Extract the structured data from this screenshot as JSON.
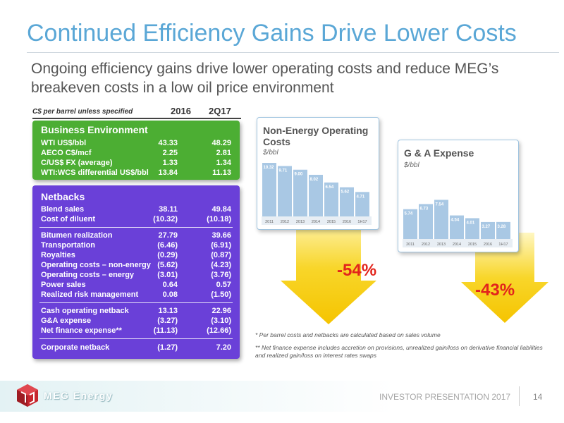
{
  "title": "Continued Efficiency Gains Drive Lower Costs",
  "subtitle": "Ongoing efficiency gains drive lower operating costs and reduce MEG’s breakeven costs in a low oil price environment",
  "table": {
    "units": "C$ per barrel unless specified",
    "col1": "2016",
    "col2": "2Q17",
    "business_environment": {
      "title": "Business Environment",
      "rows": [
        {
          "label": "WTI US$/bbl",
          "v1": "43.33",
          "v2": "48.29"
        },
        {
          "label": "AECO C$/mcf",
          "v1": "2.25",
          "v2": "2.81"
        },
        {
          "label": "C/US$ FX (average)",
          "v1": "1.33",
          "v2": "1.34"
        },
        {
          "label": "WTI:WCS differential US$/bbl",
          "v1": "13.84",
          "v2": "11.13"
        }
      ]
    },
    "netbacks": {
      "title": "Netbacks",
      "rows": [
        {
          "label": "Blend sales",
          "v1": "38.11",
          "v2": "49.84"
        },
        {
          "label": "Cost of diluent",
          "v1": "(10.32)",
          "v2": "(10.18)"
        },
        {
          "label": "Bitumen realization",
          "v1": "27.79",
          "v2": "39.66"
        },
        {
          "label": "Transportation",
          "v1": "(6.46)",
          "v2": "(6.91)"
        },
        {
          "label": "Royalties",
          "v1": "(0.29)",
          "v2": "(0.87)"
        },
        {
          "label": "Operating costs – non-energy",
          "v1": "(5.62)",
          "v2": "(4.23)"
        },
        {
          "label": "Operating costs – energy",
          "v1": "(3.01)",
          "v2": "(3.76)"
        },
        {
          "label": "Power sales",
          "v1": "0.64",
          "v2": "0.57"
        },
        {
          "label": "Realized risk management",
          "v1": "0.08",
          "v2": "(1.50)"
        },
        {
          "label": "Cash operating netback",
          "v1": "13.13",
          "v2": "22.96"
        },
        {
          "label": "G&A expense",
          "v1": "(3.27)",
          "v2": "(3.10)"
        },
        {
          "label": "Net finance expense**",
          "v1": "(11.13)",
          "v2": "(12.66)"
        },
        {
          "label": "Corporate netback",
          "v1": "(1.27)",
          "v2": "7.20"
        }
      ]
    }
  },
  "chart_data": [
    {
      "type": "bar",
      "title": "Non-Energy Operating Costs",
      "subtitle": "$/bbl",
      "categories": [
        "2011",
        "2012",
        "2013",
        "2014",
        "2015",
        "2016",
        "1H17"
      ],
      "values": [
        10.32,
        9.71,
        9.0,
        8.02,
        6.54,
        5.62,
        4.71
      ],
      "value_labels": [
        "10.32",
        "9.71",
        "9.00",
        "8.02",
        "6.54",
        "5.62",
        "4.71"
      ],
      "change_label": "-54%",
      "ylim": [
        0,
        11
      ]
    },
    {
      "type": "bar",
      "title": "G & A Expense",
      "subtitle": "$/bbl",
      "categories": [
        "2011",
        "2012",
        "2013",
        "2014",
        "2015",
        "2016",
        "1H17"
      ],
      "values": [
        5.74,
        6.73,
        7.54,
        4.54,
        4.01,
        3.27,
        3.28
      ],
      "value_labels": [
        "5.74",
        "6.73",
        "7.54",
        "4.54",
        "4.01",
        "3.27",
        "3.28"
      ],
      "change_label": "-43%",
      "ylim": [
        0,
        11
      ]
    }
  ],
  "footnotes": {
    "fn1": "*  Per barrel costs and netbacks are calculated based on sales volume",
    "fn2": "**  Net finance expense includes accretion on provisions, unrealized gain/loss on derivative financial liabilities and realized gain/loss on interest rates swaps"
  },
  "footer": {
    "logo_text": "MEG Energy",
    "label": "INVESTOR PRESENTATION 2017",
    "page": "14"
  },
  "colors": {
    "title": "#5aa7d6",
    "business_panel": "#4cae33",
    "netbacks_panel": "#6a40d8",
    "bars": "#a9c8e4",
    "arrow": "#f5c400",
    "change_text": "#e2241c"
  }
}
